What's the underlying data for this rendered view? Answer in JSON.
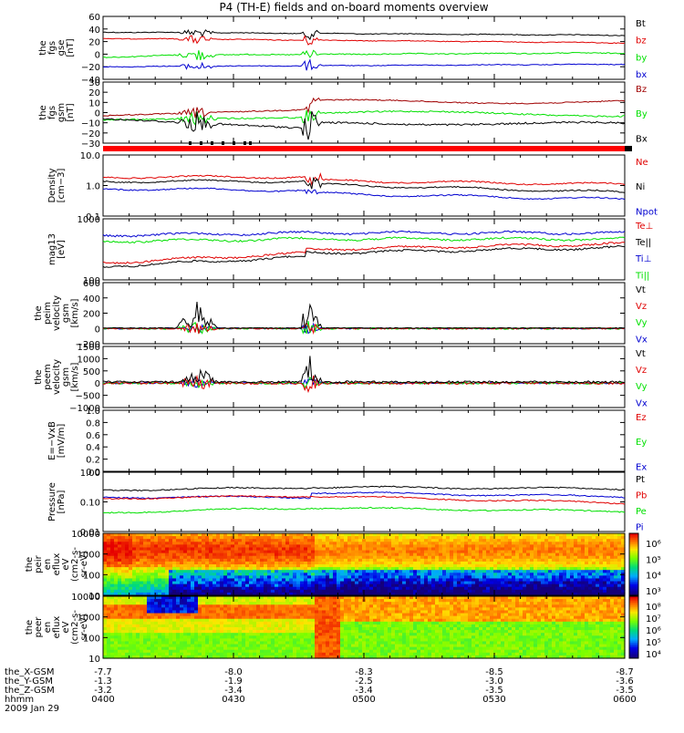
{
  "title": "P4 (TH-E) fields and on-board moments overview",
  "colors": {
    "black": "#000000",
    "red": "#e00000",
    "green": "#00e000",
    "blue": "#0000d0",
    "darkred": "#a00000"
  },
  "time_axis": {
    "ticks": [
      "0400",
      "0430",
      "0500",
      "0530",
      "0600"
    ],
    "rows": [
      {
        "label": "the_X-GSM",
        "values": [
          "-7.7",
          "-8.0",
          "-8.3",
          "-8.5",
          "-8.7"
        ]
      },
      {
        "label": "the_Y-GSM",
        "values": [
          "-1.3",
          "-1.9",
          "-2.5",
          "-3.0",
          "-3.6"
        ]
      },
      {
        "label": "the_Z-GSM",
        "values": [
          "-3.2",
          "-3.4",
          "-3.4",
          "-3.5",
          "-3.5"
        ]
      },
      {
        "label": "hhmm",
        "values": [
          "0400",
          "0430",
          "0500",
          "0530",
          "0600"
        ]
      }
    ],
    "date": "2009 Jan 29"
  },
  "chart_data": [
    {
      "type": "line",
      "id": "fgs-gse",
      "ylabel": [
        "the",
        "fgs",
        "gse",
        "[nT]"
      ],
      "ylim": [
        -40,
        60
      ],
      "yticks": [
        "60",
        "40",
        "20",
        "0",
        "−20",
        "−40"
      ],
      "legend": [
        {
          "name": "Bt",
          "color": "#000000"
        },
        {
          "name": "bz",
          "color": "#e00000"
        },
        {
          "name": "by",
          "color": "#00e000"
        },
        {
          "name": "bx",
          "color": "#0000d0"
        }
      ]
    },
    {
      "type": "line",
      "id": "fgs-gsm",
      "ylabel": [
        "the",
        "fgs",
        "gsm",
        "[nT]"
      ],
      "ylim": [
        -30,
        30
      ],
      "yticks": [
        "30",
        "20",
        "10",
        "0",
        "−10",
        "−20",
        "−30"
      ],
      "legend": [
        {
          "name": "Bz",
          "color": "#a00000"
        },
        {
          "name": "By",
          "color": "#00e000"
        },
        {
          "name": "Bx",
          "color": "#000000"
        }
      ]
    },
    {
      "type": "line",
      "id": "density",
      "ylabel": [
        "Density",
        "[cm−3]"
      ],
      "log": true,
      "yticks": [
        "10.0",
        "1.0",
        "0.1"
      ],
      "legend": [
        {
          "name": "Ne",
          "color": "#e00000"
        },
        {
          "name": "Ni",
          "color": "#000000"
        },
        {
          "name": "Npot",
          "color": "#0000d0"
        }
      ]
    },
    {
      "type": "line",
      "id": "temperature",
      "ylabel": [
        "mag13",
        "[eV]"
      ],
      "log": true,
      "yticks": [
        "1000",
        "100"
      ],
      "legend": [
        {
          "name": "Te⊥",
          "color": "#e00000"
        },
        {
          "name": "Te||",
          "color": "#000000"
        },
        {
          "name": "Ti⊥",
          "color": "#0000d0"
        },
        {
          "name": "Ti||",
          "color": "#00e000"
        }
      ]
    },
    {
      "type": "line",
      "id": "ion-velocity",
      "ylabel": [
        "the",
        "peim",
        "velocity",
        "gsm",
        "[km/s]"
      ],
      "ylim": [
        -200,
        600
      ],
      "yticks": [
        "600",
        "400",
        "200",
        "0",
        "−200"
      ],
      "legend": [
        {
          "name": "Vt",
          "color": "#000000"
        },
        {
          "name": "Vz",
          "color": "#e00000"
        },
        {
          "name": "Vy",
          "color": "#00e000"
        },
        {
          "name": "Vx",
          "color": "#0000d0"
        }
      ]
    },
    {
      "type": "line",
      "id": "electron-velocity",
      "ylabel": [
        "the",
        "peem",
        "velocity",
        "gsm",
        "[km/s]"
      ],
      "ylim": [
        -1000,
        1500
      ],
      "yticks": [
        "1500",
        "1000",
        "500",
        "0",
        "−500",
        "−1000"
      ],
      "legend": [
        {
          "name": "Vt",
          "color": "#000000"
        },
        {
          "name": "Vz",
          "color": "#e00000"
        },
        {
          "name": "Vy",
          "color": "#00e000"
        },
        {
          "name": "Vx",
          "color": "#0000d0"
        }
      ]
    },
    {
      "type": "line",
      "id": "exb",
      "ylabel": [
        "E=−VxB",
        "[mV/m]"
      ],
      "ylim": [
        0,
        1
      ],
      "yticks": [
        "1.0",
        "0.8",
        "0.6",
        "0.4",
        "0.2",
        "0.0"
      ],
      "legend": [
        {
          "name": "Ez",
          "color": "#e00000"
        },
        {
          "name": "Ey",
          "color": "#00e000"
        },
        {
          "name": "Ex",
          "color": "#0000d0"
        }
      ]
    },
    {
      "type": "line",
      "id": "pressure",
      "ylabel": [
        "Pressure",
        "[nPa]"
      ],
      "log": true,
      "yticks": [
        "1.00",
        "0.10",
        "0.01"
      ],
      "legend": [
        {
          "name": "Pt",
          "color": "#000000"
        },
        {
          "name": "Pb",
          "color": "#e00000"
        },
        {
          "name": "Pe",
          "color": "#00e000"
        },
        {
          "name": "Pi",
          "color": "#0000d0"
        }
      ]
    },
    {
      "type": "heatmap",
      "id": "ion-spectrogram",
      "ylabel": [
        "the",
        "peir",
        "en",
        "eflux",
        "eV",
        "(cm2-s-",
        "sr-eV)"
      ],
      "log": true,
      "yticks": [
        "10000",
        "1000",
        "100",
        "10"
      ],
      "colorbar": [
        "10⁶",
        "10⁵",
        "10⁴",
        "10³"
      ]
    },
    {
      "type": "heatmap",
      "id": "electron-spectrogram",
      "ylabel": [
        "the",
        "peer",
        "en",
        "eflux",
        "eV",
        "(cm2-s-",
        "sr-eV)"
      ],
      "log": true,
      "yticks": [
        "10000",
        "1000",
        "100",
        "10"
      ],
      "colorbar": [
        "10⁸",
        "10⁷",
        "10⁶",
        "10⁵",
        "10⁴"
      ]
    }
  ]
}
